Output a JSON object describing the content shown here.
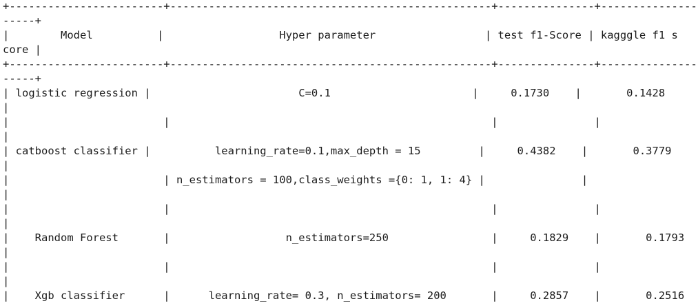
{
  "table_output": {
    "lines": [
      "+------------------------+--------------------------------------------------+---------------+-----------------",
      "-----+",
      "|        Model          |                  Hyper parameter                 | test f1-Score | kagggle f1 s",
      "core |",
      "+------------------------+--------------------------------------------------+---------------+-----------------",
      "-----+",
      "| logistic regression |                       C=0.1                      |     0.1730    |       0.1428",
      "|",
      "|                        |                                                  |               |",
      "|",
      "| catboost classifier |          learning_rate=0.1,max_depth = 15         |     0.4382    |       0.3779",
      "|",
      "|                        | n_estimators = 100,class_weights ={0: 1, 1: 4} |               |",
      "|",
      "|                        |                                                  |               |",
      "|",
      "|    Random Forest       |                  n_estimators=250                |     0.1829    |       0.1793",
      "|",
      "|                        |                                                  |               |",
      "|",
      "|    Xgb classifier      |      learning_rate= 0.3, n_estimators= 200       |     0.2857    |       0.2516"
    ]
  }
}
